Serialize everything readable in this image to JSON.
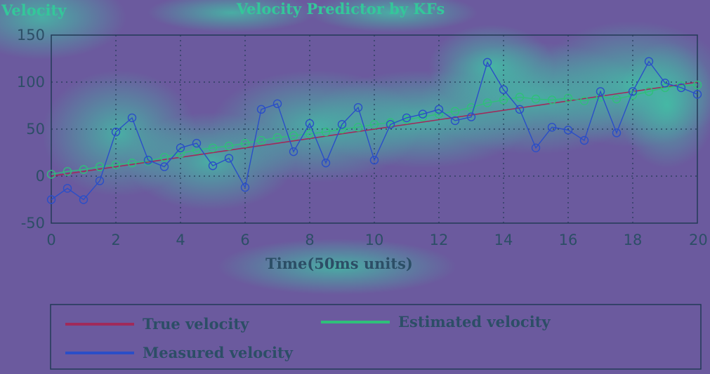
{
  "chart_data": {
    "type": "line",
    "title": "Velocity Predictor by KFs",
    "ylabel": "Velocity",
    "xlabel": "Time(50ms units)",
    "xlim": [
      0,
      20
    ],
    "ylim": [
      -50,
      150
    ],
    "xticks": [
      0,
      2,
      4,
      6,
      8,
      10,
      12,
      14,
      16,
      18,
      20
    ],
    "yticks": [
      -50,
      0,
      50,
      100,
      150
    ],
    "grid": true,
    "legend_position": "bottom",
    "series": [
      {
        "name": "True velocity",
        "color": "#a02a5a",
        "marker": "none",
        "x": [
          0,
          20
        ],
        "y": [
          0,
          100
        ]
      },
      {
        "name": "Estimated velocity",
        "color": "#2fbf7a",
        "marker": "circle",
        "x": [
          0,
          0.5,
          1,
          1.5,
          2,
          2.5,
          3,
          3.5,
          4,
          4.5,
          5,
          5.5,
          6,
          6.5,
          7,
          7.5,
          8,
          8.5,
          9,
          9.5,
          10,
          10.5,
          11,
          11.5,
          12,
          12.5,
          13,
          13.5,
          14,
          14.5,
          15,
          15.5,
          16,
          16.5,
          17,
          17.5,
          18,
          18.5,
          19,
          19.5,
          20
        ],
        "y": [
          2,
          5,
          7,
          10,
          12,
          14,
          16,
          20,
          24,
          28,
          30,
          32,
          35,
          38,
          41,
          43,
          45,
          47,
          50,
          52,
          55,
          57,
          60,
          63,
          66,
          69,
          73,
          78,
          81,
          84,
          82,
          81,
          83,
          80,
          84,
          82,
          86,
          90,
          94,
          96,
          97
        ]
      },
      {
        "name": "Measured velocity",
        "color": "#2a4ec8",
        "marker": "circle",
        "x": [
          0,
          0.5,
          1,
          1.5,
          2,
          2.5,
          3,
          3.5,
          4,
          4.5,
          5,
          5.5,
          6,
          6.5,
          7,
          7.5,
          8,
          8.5,
          9,
          9.5,
          10,
          10.5,
          11,
          11.5,
          12,
          12.5,
          13,
          13.5,
          14,
          14.5,
          15,
          15.5,
          16,
          16.5,
          17,
          17.5,
          18,
          18.5,
          19,
          19.5,
          20
        ],
        "y": [
          -25,
          -13,
          -25,
          -5,
          47,
          62,
          17,
          10,
          30,
          35,
          11,
          19,
          -12,
          71,
          77,
          26,
          56,
          14,
          55,
          73,
          17,
          55,
          62,
          66,
          71,
          59,
          63,
          121,
          92,
          71,
          30,
          52,
          49,
          38,
          90,
          46,
          90,
          122,
          99,
          94,
          87
        ]
      }
    ]
  }
}
